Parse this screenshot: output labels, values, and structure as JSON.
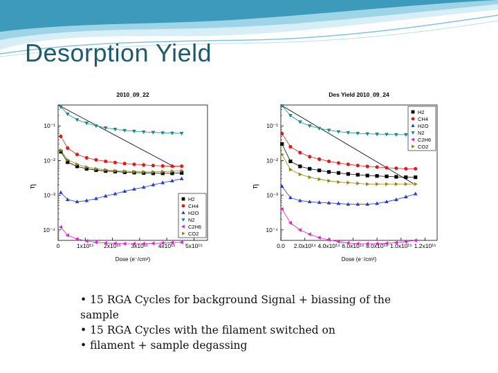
{
  "slide": {
    "title": "Desorption Yield",
    "bullets": [
      "• 15 RGA Cycles  for background Signal + biassing of the sample",
      "• 15 RGA Cycles with the filament switched on",
      "• filament + sample degassing"
    ],
    "colors": {
      "title": "#1f5a6b",
      "wave_dark": "#2b8fb3",
      "wave_light": "#9fd3e6"
    }
  },
  "chart_data": [
    {
      "type": "scatter",
      "title": "2010_09_22",
      "xlabel": "Dose (e⁻/cm²)",
      "ylabel": "η",
      "yscale": "log",
      "xlim": [
        0,
        5500000000000000.0
      ],
      "ylim": [
        5e-05,
        0.4
      ],
      "xticks": [
        0,
        1000000000000000.0,
        2000000000000000.0,
        3000000000000000.0,
        4000000000000000.0,
        5000000000000000.0
      ],
      "xtick_labels": [
        "0",
        "1x10¹⁵",
        "2x10¹⁵",
        "3x10¹⁵",
        "4x10¹⁵",
        "5x10¹⁵"
      ],
      "yticks": [
        0.0001,
        0.001,
        0.01,
        0.1
      ],
      "ytick_labels": [
        "10⁻⁴",
        "10⁻³",
        "10⁻²",
        "10⁻¹"
      ],
      "legend_position": "bottom-right",
      "x": [
        100000000000000.0,
        350000000000000.0,
        700000000000000.0,
        1050000000000000.0,
        1400000000000000.0,
        1750000000000000.0,
        2100000000000000.0,
        2450000000000000.0,
        2800000000000000.0,
        3150000000000000.0,
        3500000000000000.0,
        3850000000000000.0,
        4200000000000000.0,
        4550000000000000.0
      ],
      "series": [
        {
          "name": "H2",
          "marker": "square",
          "color": "#000000",
          "values": [
            0.018,
            0.009,
            0.0068,
            0.0058,
            0.0053,
            0.005,
            0.0048,
            0.0046,
            0.0045,
            0.0044,
            0.0043,
            0.0043,
            0.0043,
            0.0044
          ]
        },
        {
          "name": "CH4",
          "marker": "circle",
          "color": "#e31a1c",
          "values": [
            0.05,
            0.023,
            0.015,
            0.012,
            0.0105,
            0.0095,
            0.0088,
            0.0082,
            0.0078,
            0.0075,
            0.0072,
            0.007,
            0.0069,
            0.0069
          ]
        },
        {
          "name": "H2O",
          "marker": "triangle-up",
          "color": "#1f3ad6",
          "values": [
            0.0012,
            0.00075,
            0.00065,
            0.0007,
            0.0008,
            0.00095,
            0.0011,
            0.0013,
            0.0015,
            0.0017,
            0.002,
            0.0023,
            0.0026,
            0.003
          ]
        },
        {
          "name": "N2",
          "marker": "triangle-down",
          "color": "#138a8a",
          "values": [
            0.35,
            0.22,
            0.15,
            0.12,
            0.1,
            0.088,
            0.08,
            0.074,
            0.07,
            0.067,
            0.065,
            0.063,
            0.062,
            0.061
          ]
        },
        {
          "name": "C2H6",
          "marker": "triangle-left",
          "color": "#e020d0",
          "values": [
            0.00012,
            7e-05,
            5.5e-05,
            4.8e-05,
            4.4e-05,
            4.2e-05,
            4.1e-05,
            4e-05,
            4e-05,
            4e-05,
            4.1e-05,
            4.2e-05,
            4.3e-05,
            4.4e-05
          ]
        },
        {
          "name": "CO2",
          "marker": "triangle-right",
          "color": "#8a8a10",
          "values": [
            0.02,
            0.0105,
            0.0078,
            0.0065,
            0.0058,
            0.0054,
            0.0051,
            0.0049,
            0.0048,
            0.0047,
            0.0047,
            0.0048,
            0.0049,
            0.0051
          ]
        }
      ],
      "trend_line": {
        "x": [
          0,
          4300000000000000.0
        ],
        "y": [
          0.4,
          0.0065
        ]
      }
    },
    {
      "type": "scatter",
      "title": "Des Yield 2010_09_24",
      "xlabel": "Dose (e⁻/cm²)",
      "ylabel": "η",
      "yscale": "log",
      "xlim": [
        0,
        1300000000000000.0
      ],
      "ylim": [
        5e-05,
        0.4
      ],
      "xticks": [
        0,
        200000000000000.0,
        400000000000000.0,
        600000000000000.0,
        800000000000000.0,
        1000000000000000.0,
        1200000000000000.0
      ],
      "xtick_labels": [
        "0.0",
        "2.0x10¹⁴",
        "4.0x10¹⁴",
        "6.0x10¹⁴",
        "8.0x10¹⁴",
        "1.0x10¹⁵",
        "1.2x10¹⁵"
      ],
      "yticks": [
        0.0001,
        0.001,
        0.01,
        0.1
      ],
      "ytick_labels": [
        "10⁻⁴",
        "10⁻³",
        "10⁻²",
        "10⁻¹"
      ],
      "legend_position": "top-right",
      "x": [
        10000000000000.0,
        80000000000000.0,
        160000000000000.0,
        240000000000000.0,
        320000000000000.0,
        400000000000000.0,
        480000000000000.0,
        560000000000000.0,
        640000000000000.0,
        720000000000000.0,
        800000000000000.0,
        880000000000000.0,
        960000000000000.0,
        1040000000000000.0,
        1120000000000000.0
      ],
      "series": [
        {
          "name": "H2",
          "marker": "square",
          "color": "#000000",
          "values": [
            0.03,
            0.0095,
            0.0068,
            0.0058,
            0.0052,
            0.0047,
            0.0044,
            0.0041,
            0.0039,
            0.0037,
            0.0036,
            0.0035,
            0.0034,
            0.0033,
            0.0033
          ]
        },
        {
          "name": "CH4",
          "marker": "circle",
          "color": "#e31a1c",
          "values": [
            0.06,
            0.025,
            0.017,
            0.013,
            0.011,
            0.0095,
            0.0085,
            0.0078,
            0.0072,
            0.0068,
            0.0065,
            0.0062,
            0.006,
            0.0058,
            0.0058
          ]
        },
        {
          "name": "H2O",
          "marker": "triangle-up",
          "color": "#1f3ad6",
          "values": [
            0.0018,
            0.00085,
            0.0007,
            0.00065,
            0.00062,
            0.0006,
            0.00058,
            0.00055,
            0.00055,
            0.00055,
            0.00058,
            0.00065,
            0.00075,
            0.0009,
            0.0011
          ]
        },
        {
          "name": "N2",
          "marker": "triangle-down",
          "color": "#138a8a",
          "values": [
            0.38,
            0.2,
            0.13,
            0.1,
            0.085,
            0.075,
            0.068,
            0.064,
            0.061,
            0.059,
            0.058,
            0.057,
            0.056,
            0.056,
            0.055
          ]
        },
        {
          "name": "C2H6",
          "marker": "triangle-left",
          "color": "#e020d0",
          "values": [
            0.0004,
            0.00016,
            0.0001,
            7.5e-05,
            6e-05,
            5.2e-05,
            4.6e-05,
            4.2e-05,
            4e-05,
            4e-05,
            4e-05,
            4.1e-05,
            4.3e-05,
            4.6e-05,
            5e-05
          ]
        },
        {
          "name": "CO2",
          "marker": "triangle-right",
          "color": "#8a8a10",
          "values": [
            0.015,
            0.0055,
            0.004,
            0.0033,
            0.0029,
            0.0026,
            0.0024,
            0.0023,
            0.0022,
            0.0021,
            0.0021,
            0.0021,
            0.0021,
            0.0021,
            0.0021
          ]
        }
      ],
      "trend_line": {
        "x": [
          0,
          1100000000000000.0
        ],
        "y": [
          0.4,
          0.0022
        ]
      }
    }
  ]
}
